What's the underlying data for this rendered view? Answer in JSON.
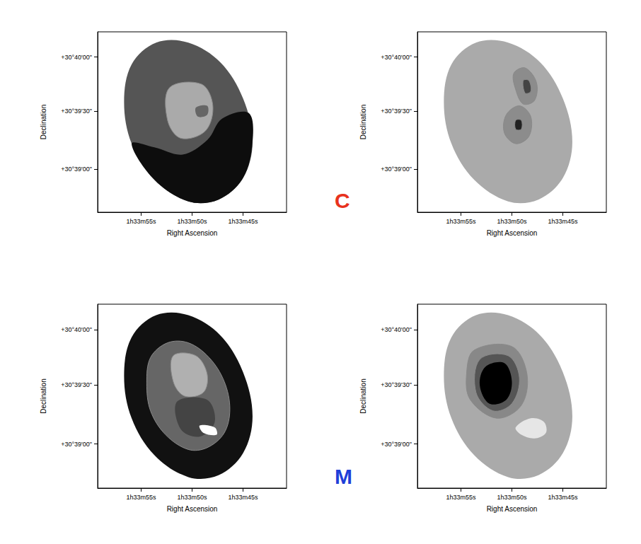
{
  "chart_data": [
    {
      "type": "contour",
      "xlabel": "Right Ascension",
      "ylabel": "Declination",
      "xlim": [
        0,
        100
      ],
      "ylim": [
        0,
        100
      ],
      "xticks": [
        {
          "value": 23,
          "label": "1h33m55s"
        },
        {
          "value": 50,
          "label": "1h33m50s"
        },
        {
          "value": 77,
          "label": "1h33m45s"
        }
      ],
      "yticks": [
        {
          "value": 24,
          "label": "+30°39'00\""
        },
        {
          "value": 56,
          "label": "+30°39'30\""
        },
        {
          "value": 86,
          "label": "+30°40'00\""
        }
      ],
      "regions": [
        {
          "color": "#555555",
          "points": [
            [
              64,
              7
            ],
            [
              77,
              19
            ],
            [
              82,
              39
            ],
            [
              77,
              63
            ],
            [
              65,
              83
            ],
            [
              48,
              94
            ],
            [
              31,
              94
            ],
            [
              18,
              82
            ],
            [
              14,
              61
            ],
            [
              18,
              38
            ],
            [
              30,
              18
            ],
            [
              48,
              6
            ]
          ]
        },
        {
          "color": "#0d0d0d",
          "points": [
            [
              18,
              38
            ],
            [
              30,
              18
            ],
            [
              48,
              6
            ],
            [
              64,
              7
            ],
            [
              77,
              19
            ],
            [
              82,
              39
            ],
            [
              80,
              55
            ],
            [
              66,
              52
            ],
            [
              58,
              40
            ],
            [
              45,
              32
            ],
            [
              30,
              36
            ]
          ]
        },
        {
          "color": "#aaaaaa",
          "line_style": "solid",
          "points": [
            [
              38,
              69
            ],
            [
              55,
              71
            ],
            [
              61,
              59
            ],
            [
              57,
              45
            ],
            [
              44,
              41
            ],
            [
              37,
              51
            ]
          ]
        },
        {
          "color": "#666666",
          "points": [
            [
              52,
              58
            ],
            [
              58,
              59
            ],
            [
              58,
              54
            ],
            [
              53,
              53
            ]
          ]
        }
      ],
      "annotation": {
        "text": "C",
        "color": "#e8321e"
      }
    },
    {
      "type": "contour",
      "xlabel": "Right Ascension",
      "ylabel": "Declination",
      "xlim": [
        0,
        100
      ],
      "ylim": [
        0,
        100
      ],
      "xticks": [
        {
          "value": 23,
          "label": "1h33m55s"
        },
        {
          "value": 50,
          "label": "1h33m50s"
        },
        {
          "value": 77,
          "label": "1h33m45s"
        }
      ],
      "yticks": [
        {
          "value": 24,
          "label": "+30°39'00\""
        },
        {
          "value": 56,
          "label": "+30°39'30\""
        },
        {
          "value": 86,
          "label": "+30°40'00\""
        }
      ],
      "regions": [
        {
          "color": "#aaaaaa",
          "points": [
            [
              64,
              7
            ],
            [
              77,
              19
            ],
            [
              82,
              39
            ],
            [
              77,
              63
            ],
            [
              65,
              83
            ],
            [
              48,
              94
            ],
            [
              31,
              94
            ],
            [
              18,
              82
            ],
            [
              14,
              61
            ],
            [
              18,
              38
            ],
            [
              30,
              18
            ],
            [
              48,
              6
            ]
          ]
        },
        {
          "color": "#8c8c8c",
          "line_style": "solid",
          "points": [
            [
              51,
              77
            ],
            [
              57,
              80
            ],
            [
              63,
              72
            ],
            [
              62,
              62
            ],
            [
              56,
              60
            ],
            [
              52,
              68
            ]
          ]
        },
        {
          "color": "#444444",
          "line_style": "solid",
          "points": [
            [
              56,
              73
            ],
            [
              59,
              73
            ],
            [
              60,
              67
            ],
            [
              57,
              66
            ]
          ]
        },
        {
          "color": "#8c8c8c",
          "line_style": "solid",
          "points": [
            [
              47,
              54
            ],
            [
              54,
              59
            ],
            [
              60,
              53
            ],
            [
              59,
              42
            ],
            [
              52,
              38
            ],
            [
              46,
              44
            ]
          ]
        },
        {
          "color": "#222222",
          "line_style": "solid",
          "points": [
            [
              52,
              51
            ],
            [
              55,
              51
            ],
            [
              55,
              46
            ],
            [
              52,
              46
            ]
          ]
        }
      ]
    },
    {
      "type": "contour",
      "xlabel": "Right Ascension",
      "ylabel": "Declination",
      "xlim": [
        0,
        100
      ],
      "ylim": [
        0,
        100
      ],
      "xticks": [
        {
          "value": 23,
          "label": "1h33m55s"
        },
        {
          "value": 50,
          "label": "1h33m50s"
        },
        {
          "value": 77,
          "label": "1h33m45s"
        }
      ],
      "yticks": [
        {
          "value": 24,
          "label": "+30°39'00\""
        },
        {
          "value": 56,
          "label": "+30°39'30\""
        },
        {
          "value": 86,
          "label": "+30°40'00\""
        }
      ],
      "regions": [
        {
          "color": "#111111",
          "points": [
            [
              64,
              7
            ],
            [
              77,
              19
            ],
            [
              82,
              39
            ],
            [
              77,
              63
            ],
            [
              65,
              83
            ],
            [
              48,
              94
            ],
            [
              31,
              94
            ],
            [
              18,
              82
            ],
            [
              14,
              61
            ],
            [
              18,
              38
            ],
            [
              30,
              18
            ],
            [
              48,
              6
            ]
          ]
        },
        {
          "color": "#666666",
          "line_style": "solid",
          "points": [
            [
              58,
              22
            ],
            [
              67,
              30
            ],
            [
              70,
              43
            ],
            [
              67,
              58
            ],
            [
              59,
              71
            ],
            [
              48,
              79
            ],
            [
              37,
              79
            ],
            [
              28,
              71
            ],
            [
              26,
              57
            ],
            [
              28,
              42
            ],
            [
              36,
              29
            ],
            [
              48,
              21
            ]
          ]
        },
        {
          "color": "#b0b0b0",
          "line_style": "solid",
          "points": [
            [
              40,
              72
            ],
            [
              52,
              72
            ],
            [
              58,
              62
            ],
            [
              56,
              52
            ],
            [
              46,
              50
            ],
            [
              40,
              58
            ]
          ]
        },
        {
          "color": "#444444",
          "points": [
            [
              42,
              47
            ],
            [
              58,
              48
            ],
            [
              62,
              36
            ],
            [
              54,
              28
            ],
            [
              44,
              32
            ]
          ]
        },
        {
          "color": "#ffffff",
          "points": [
            [
              54,
              34
            ],
            [
              62,
              33
            ],
            [
              63,
              29
            ],
            [
              56,
              30
            ]
          ]
        }
      ],
      "annotation": {
        "text": "M",
        "color": "#1f3fd8"
      }
    },
    {
      "type": "contour",
      "xlabel": "Right Ascension",
      "ylabel": "Declination",
      "xlim": [
        0,
        100
      ],
      "ylim": [
        0,
        100
      ],
      "xticks": [
        {
          "value": 23,
          "label": "1h33m55s"
        },
        {
          "value": 50,
          "label": "1h33m50s"
        },
        {
          "value": 77,
          "label": "1h33m45s"
        }
      ],
      "yticks": [
        {
          "value": 24,
          "label": "+30°39'00\""
        },
        {
          "value": 56,
          "label": "+30°39'30\""
        },
        {
          "value": 86,
          "label": "+30°40'00\""
        }
      ],
      "regions": [
        {
          "color": "#aaaaaa",
          "points": [
            [
              64,
              7
            ],
            [
              77,
              19
            ],
            [
              82,
              39
            ],
            [
              77,
              63
            ],
            [
              65,
              83
            ],
            [
              48,
              94
            ],
            [
              31,
              94
            ],
            [
              18,
              82
            ],
            [
              14,
              61
            ],
            [
              18,
              38
            ],
            [
              30,
              18
            ],
            [
              48,
              6
            ]
          ]
        },
        {
          "color": "#888888",
          "line_style": "solid",
          "points": [
            [
              30,
              75
            ],
            [
              50,
              77
            ],
            [
              58,
              62
            ],
            [
              55,
              45
            ],
            [
              42,
              38
            ],
            [
              28,
              48
            ],
            [
              26,
              62
            ]
          ]
        },
        {
          "color": "#555555",
          "line_style": "solid",
          "points": [
            [
              33,
              70
            ],
            [
              48,
              72
            ],
            [
              54,
              60
            ],
            [
              50,
              46
            ],
            [
              40,
              42
            ],
            [
              31,
              52
            ]
          ]
        },
        {
          "color": "#000000",
          "points": [
            [
              36,
              66
            ],
            [
              46,
              68
            ],
            [
              50,
              58
            ],
            [
              47,
              48
            ],
            [
              38,
              46
            ],
            [
              33,
              56
            ]
          ]
        },
        {
          "color": "#e6e6e6",
          "points": [
            [
              52,
              33
            ],
            [
              60,
              38
            ],
            [
              67,
              36
            ],
            [
              68,
              30
            ],
            [
              62,
              27
            ],
            [
              55,
              29
            ]
          ]
        }
      ]
    }
  ]
}
